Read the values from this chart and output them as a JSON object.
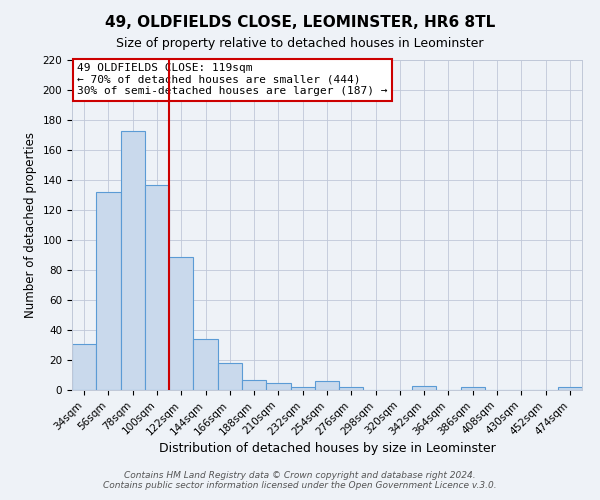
{
  "title": "49, OLDFIELDS CLOSE, LEOMINSTER, HR6 8TL",
  "subtitle": "Size of property relative to detached houses in Leominster",
  "xlabel": "Distribution of detached houses by size in Leominster",
  "ylabel": "Number of detached properties",
  "footer_line1": "Contains HM Land Registry data © Crown copyright and database right 2024.",
  "footer_line2": "Contains public sector information licensed under the Open Government Licence v.3.0.",
  "bin_labels": [
    "34sqm",
    "56sqm",
    "78sqm",
    "100sqm",
    "122sqm",
    "144sqm",
    "166sqm",
    "188sqm",
    "210sqm",
    "232sqm",
    "254sqm",
    "276sqm",
    "298sqm",
    "320sqm",
    "342sqm",
    "364sqm",
    "386sqm",
    "408sqm",
    "430sqm",
    "452sqm",
    "474sqm"
  ],
  "bar_heights": [
    31,
    132,
    173,
    137,
    89,
    34,
    18,
    7,
    5,
    2,
    6,
    2,
    0,
    0,
    3,
    0,
    2,
    0,
    0,
    0,
    2
  ],
  "bar_color": "#c9d9ec",
  "bar_edge_color": "#5b9bd5",
  "vline_x": 3.5,
  "vline_color": "#cc0000",
  "ylim": [
    0,
    220
  ],
  "yticks": [
    0,
    20,
    40,
    60,
    80,
    100,
    120,
    140,
    160,
    180,
    200,
    220
  ],
  "annotation_title": "49 OLDFIELDS CLOSE: 119sqm",
  "annotation_line1": "← 70% of detached houses are smaller (444)",
  "annotation_line2": "30% of semi-detached houses are larger (187) →",
  "annotation_box_color": "#ffffff",
  "annotation_box_edge_color": "#cc0000",
  "grid_color": "#c0c8d8",
  "background_color": "#eef2f7",
  "title_fontsize": 11,
  "subtitle_fontsize": 9,
  "ylabel_fontsize": 8.5,
  "xlabel_fontsize": 9,
  "tick_fontsize": 7.5
}
